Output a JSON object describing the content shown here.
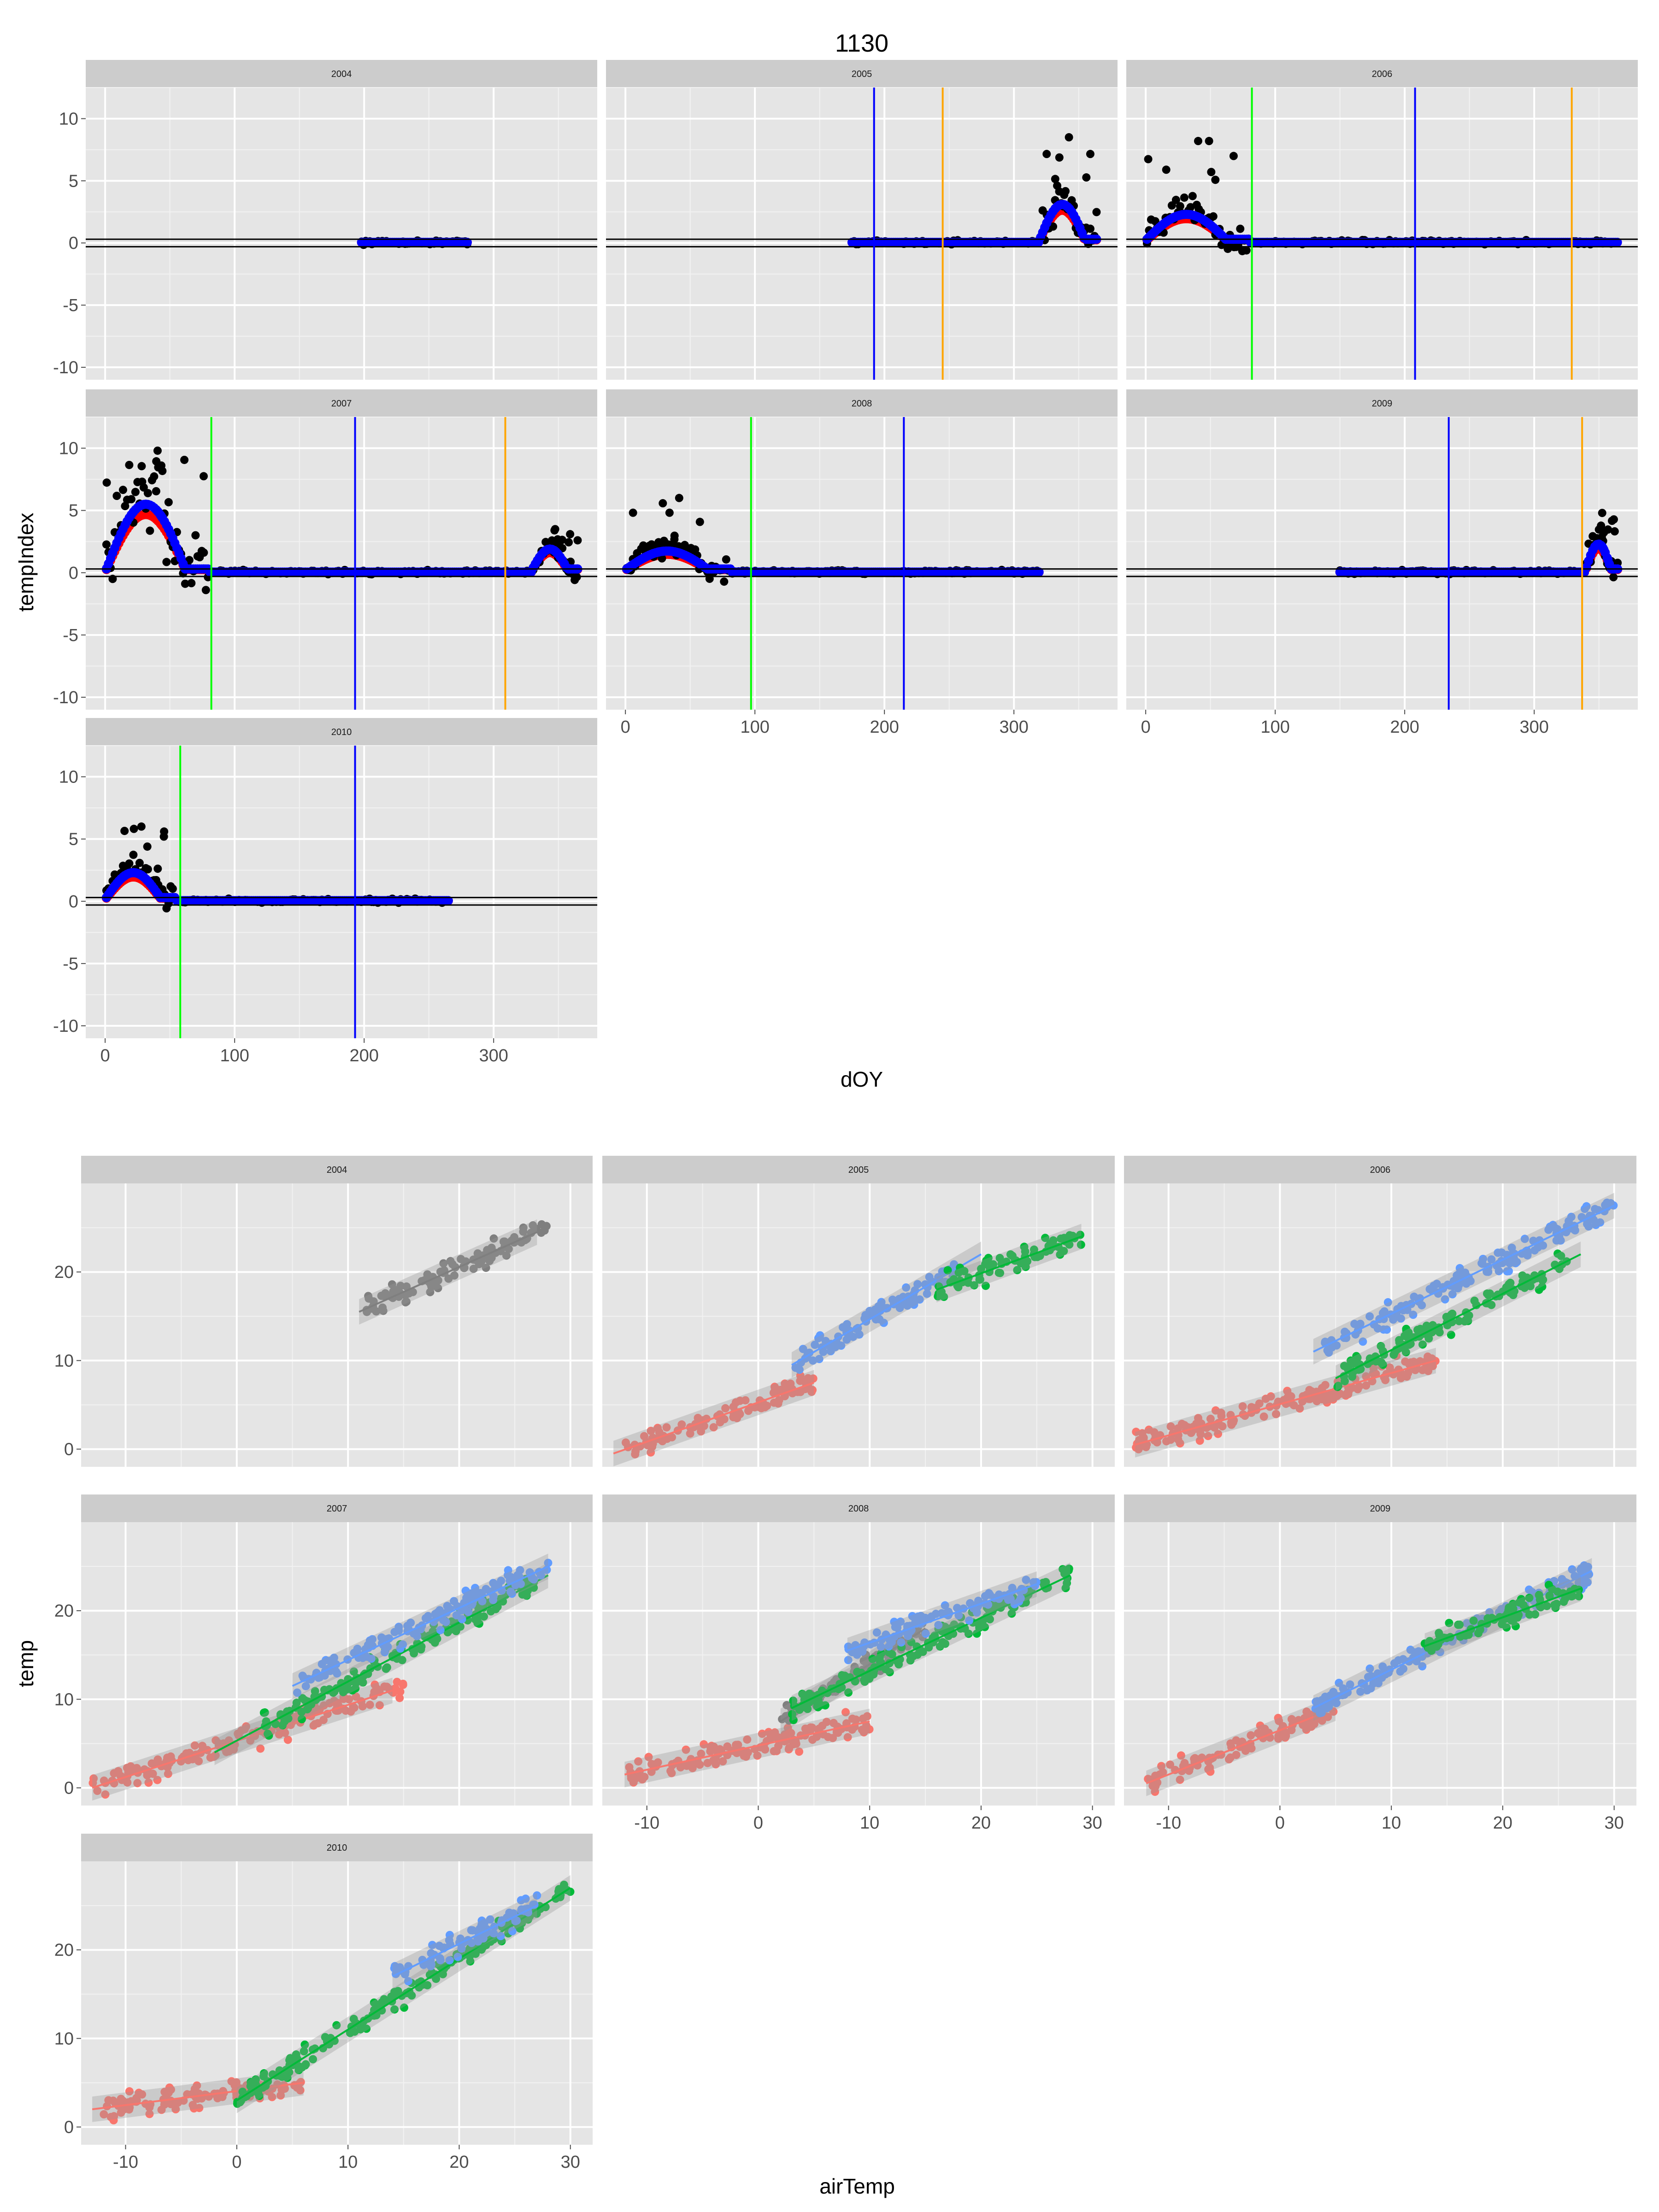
{
  "page_title": "1130",
  "colors": {
    "panel_bg": "#e5e5e5",
    "strip_bg": "#cccccc",
    "grid": "#ffffff",
    "index_points": "#000000",
    "smooth_red": "#ff0000",
    "smooth_blue": "#0000ff",
    "vline_green": "#00ff00",
    "vline_blue": "#0000ff",
    "vline_orange": "#ffa500",
    "season_red": "#f8766d",
    "season_green": "#00ba38",
    "season_blue": "#619cff",
    "season_grey": "#7f7f7f"
  },
  "chart_data": [
    {
      "type": "scatter",
      "title": "1130",
      "xlabel": "dOY",
      "ylabel": "tempIndex",
      "xlim": [
        -15,
        380
      ],
      "ylim": [
        -11,
        12.5
      ],
      "x_ticks": [
        0,
        100,
        200,
        300
      ],
      "y_ticks": [
        -10,
        -5,
        0,
        5,
        10
      ],
      "hlines": [
        0.3,
        -0.3
      ],
      "grid": true,
      "panels": [
        {
          "label": "2004",
          "range": [
            198,
            280
          ],
          "high": [],
          "vlines": []
        },
        {
          "label": "2005",
          "range": [
            175,
            365
          ],
          "high": [
            {
              "x": [
                320,
                365
              ],
              "peak": 3.5,
              "max": 8.5
            }
          ],
          "vlines": [
            {
              "x": 192,
              "color": "blue"
            },
            {
              "x": 245,
              "color": "orange"
            }
          ]
        },
        {
          "label": "2006",
          "range": [
            1,
            365
          ],
          "high": [
            {
              "x": [
                1,
                80
              ],
              "peak": 2.5,
              "max": 8.2
            }
          ],
          "vlines": [
            {
              "x": 82,
              "color": "green"
            },
            {
              "x": 208,
              "color": "blue"
            },
            {
              "x": 329,
              "color": "orange"
            }
          ]
        },
        {
          "label": "2007",
          "range": [
            1,
            365
          ],
          "high": [
            {
              "x": [
                1,
                80
              ],
              "peak": 6.5,
              "max": 9.8
            },
            {
              "x": [
                330,
                365
              ],
              "peak": 2.0,
              "max": 3.5
            }
          ],
          "vlines": [
            {
              "x": 82,
              "color": "green"
            },
            {
              "x": 193,
              "color": "blue"
            },
            {
              "x": 309,
              "color": "orange"
            }
          ]
        },
        {
          "label": "2008",
          "range": [
            1,
            320
          ],
          "high": [
            {
              "x": [
                1,
                82
              ],
              "peak": 1.8,
              "max": 6.0
            }
          ],
          "vlines": [
            {
              "x": 97,
              "color": "green"
            },
            {
              "x": 215,
              "color": "blue"
            }
          ]
        },
        {
          "label": "2009",
          "range": [
            150,
            365
          ],
          "high": [
            {
              "x": [
                340,
                365
              ],
              "peak": 2.5,
              "max": 4.8
            }
          ],
          "vlines": [
            {
              "x": 234,
              "color": "blue"
            },
            {
              "x": 337,
              "color": "orange"
            }
          ]
        },
        {
          "label": "2010",
          "range": [
            1,
            265
          ],
          "high": [
            {
              "x": [
                1,
                55
              ],
              "peak": 2.5,
              "max": 6.0
            }
          ],
          "vlines": [
            {
              "x": 58,
              "color": "green"
            },
            {
              "x": 193,
              "color": "blue"
            }
          ]
        }
      ]
    },
    {
      "type": "scatter",
      "xlabel": "airTemp",
      "ylabel": "temp",
      "xlim": [
        -14,
        32
      ],
      "ylim": [
        -2,
        30
      ],
      "x_ticks": [
        -10,
        0,
        10,
        20,
        30
      ],
      "y_ticks": [
        0,
        10,
        20
      ],
      "grid": true,
      "panels": [
        {
          "label": "2004",
          "groups": [
            {
              "color": "grey",
              "x": [
                11,
                28
              ],
              "line": [
                [
                  11,
                  15.5
                ],
                [
                  27,
                  24.5
                ]
              ]
            }
          ]
        },
        {
          "label": "2005",
          "groups": [
            {
              "color": "red",
              "x": [
                -12,
                5
              ],
              "line": [
                [
                  -13,
                  -0.5
                ],
                [
                  5,
                  7.5
                ]
              ]
            },
            {
              "color": "blue",
              "x": [
                3,
                18
              ],
              "line": [
                [
                  3,
                  9.5
                ],
                [
                  20,
                  22
                ]
              ]
            },
            {
              "color": "green",
              "x": [
                16,
                29
              ],
              "line": [
                [
                  16,
                  18
                ],
                [
                  29,
                  24
                ]
              ]
            }
          ]
        },
        {
          "label": "2006",
          "groups": [
            {
              "color": "red",
              "x": [
                -13,
                14
              ],
              "line": [
                [
                  -13,
                  0.5
                ],
                [
                  14,
                  10
                ]
              ]
            },
            {
              "color": "blue",
              "x": [
                4,
                30
              ],
              "line": [
                [
                  3,
                  11
                ],
                [
                  30,
                  27.5
                ]
              ]
            },
            {
              "color": "green",
              "x": [
                5,
                26
              ],
              "line": [
                [
                  5,
                  8
                ],
                [
                  27,
                  22
                ]
              ]
            }
          ]
        },
        {
          "label": "2007",
          "groups": [
            {
              "color": "red",
              "x": [
                -13,
                15
              ],
              "line": [
                [
                  -13,
                  0
                ],
                [
                  14,
                  11
                ]
              ]
            },
            {
              "color": "green",
              "x": [
                2,
                27
              ],
              "line": [
                [
                  -2,
                  4
                ],
                [
                  28,
                  24
                ]
              ]
            },
            {
              "color": "blue",
              "x": [
                5,
                28
              ],
              "line": [
                [
                  5,
                  11.5
                ],
                [
                  28,
                  25
                ]
              ]
            }
          ]
        },
        {
          "label": "2008",
          "groups": [
            {
              "color": "red",
              "x": [
                -12,
                10
              ],
              "line": [
                [
                  -12,
                  1.5
                ],
                [
                  10,
                  7.5
                ]
              ]
            },
            {
              "color": "grey",
              "x": [
                2,
                15
              ],
              "line": [
                [
                  2,
                  7.5
                ],
                [
                  15,
                  18
                ]
              ]
            },
            {
              "color": "green",
              "x": [
                3,
                28
              ],
              "line": [
                [
                  3,
                  9
                ],
                [
                  28,
                  24
                ]
              ]
            },
            {
              "color": "blue",
              "x": [
                8,
                25
              ],
              "line": [
                [
                  8,
                  15.5
                ],
                [
                  25,
                  23
                ]
              ]
            }
          ]
        },
        {
          "label": "2009",
          "groups": [
            {
              "color": "red",
              "x": [
                -12,
                5
              ],
              "line": [
                [
                  -12,
                  0.5
                ],
                [
                  5,
                  9
                ]
              ]
            },
            {
              "color": "blue",
              "x": [
                3,
                28
              ],
              "line": [
                [
                  3,
                  9
                ],
                [
                  28,
                  24.5
                ]
              ]
            },
            {
              "color": "green",
              "x": [
                13,
                27
              ],
              "line": [
                [
                  13,
                  16
                ],
                [
                  27,
                  22.5
                ]
              ]
            }
          ]
        },
        {
          "label": "2010",
          "groups": [
            {
              "color": "red",
              "x": [
                -12,
                6
              ],
              "line": [
                [
                  -13,
                  2
                ],
                [
                  6,
                  5
                ]
              ]
            },
            {
              "color": "green",
              "x": [
                0,
                30
              ],
              "line": [
                [
                  0,
                  3
                ],
                [
                  30,
                  27
                ]
              ]
            },
            {
              "color": "blue",
              "x": [
                14,
                27
              ],
              "line": [
                [
                  14,
                  17
                ],
                [
                  27,
                  25
                ]
              ]
            }
          ]
        }
      ]
    }
  ]
}
